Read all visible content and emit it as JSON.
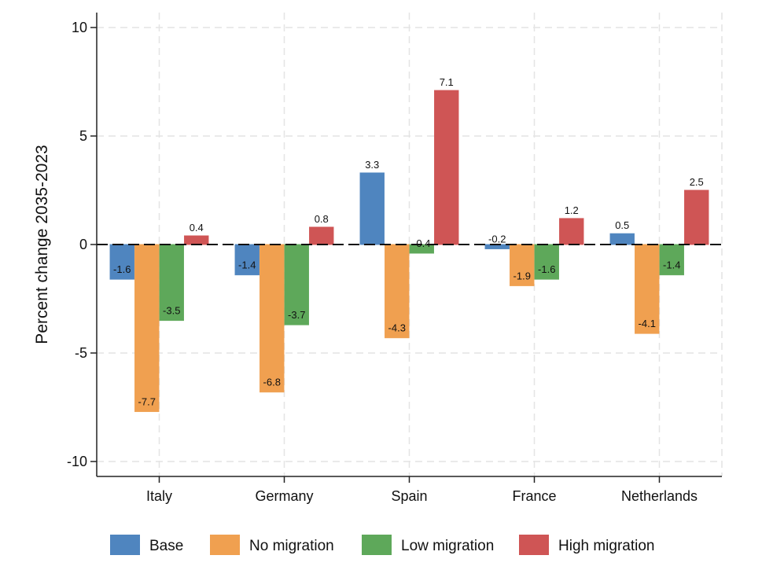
{
  "chart_data": {
    "type": "bar",
    "title": "",
    "xlabel": "",
    "ylabel": "Percent change 2035-2023",
    "ylim": [
      -10.8,
      10.8
    ],
    "yticks": [
      10,
      5,
      0,
      -5,
      -10
    ],
    "grid": true,
    "legend_position": "bottom",
    "categories": [
      "Italy",
      "Germany",
      "Spain",
      "France",
      "Netherlands"
    ],
    "series": [
      {
        "name": "Base",
        "color": "#4f85bf",
        "values": [
          -1.6,
          -1.4,
          3.3,
          -0.2,
          0.5
        ],
        "labels": [
          "-1.6",
          "-1.4",
          "3.3",
          "-0.2",
          "0.5"
        ]
      },
      {
        "name": "No migration",
        "color": "#f0a050",
        "values": [
          -7.7,
          -6.8,
          -4.3,
          -1.9,
          -4.1
        ],
        "labels": [
          "-7.7",
          "-6.8",
          "-4.3",
          "-1.9",
          "-4.1"
        ]
      },
      {
        "name": "Low migration",
        "color": "#5ea85a",
        "values": [
          -3.5,
          -3.7,
          -0.4,
          -1.6,
          -1.4
        ],
        "labels": [
          "-3.5",
          "-3.7",
          "-0.4",
          "-1.6",
          "-1.4"
        ]
      },
      {
        "name": "High migration",
        "color": "#cf5555",
        "values": [
          0.4,
          0.8,
          7.1,
          1.2,
          2.5
        ],
        "labels": [
          "0.4",
          "0.8",
          "7.1",
          "1.2",
          "2.5"
        ]
      }
    ]
  }
}
